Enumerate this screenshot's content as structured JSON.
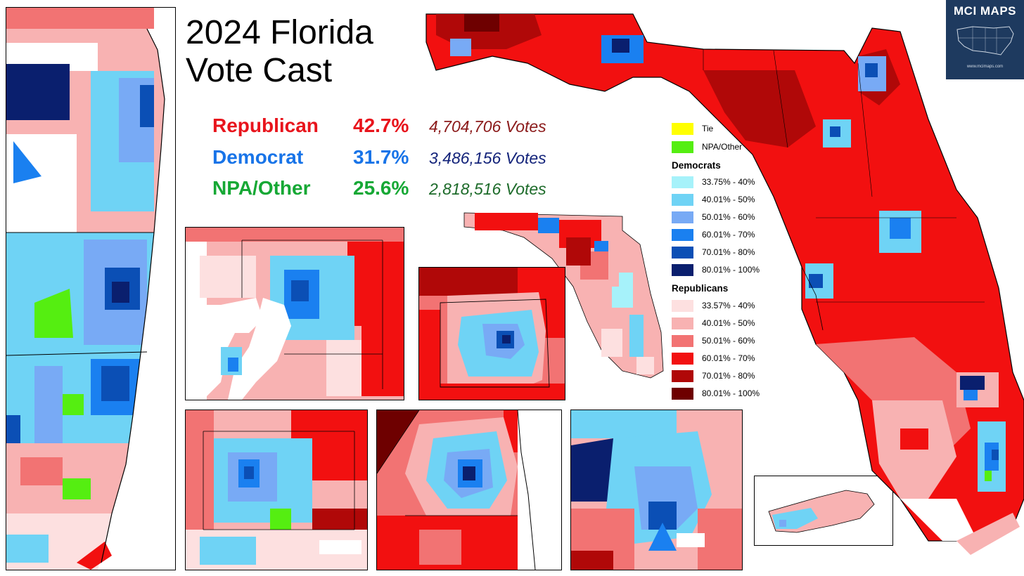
{
  "title": {
    "line1": "2024 Florida",
    "line2": "Vote Cast"
  },
  "results": [
    {
      "party": "Republican",
      "percent": "42.7%",
      "votes": "4,704,706 Votes",
      "color": "#e8141c",
      "votes_color": "#8b1a1a"
    },
    {
      "party": "Democrat",
      "percent": "31.7%",
      "votes": "3,486,156 Votes",
      "color": "#1874e8",
      "votes_color": "#13237a"
    },
    {
      "party": "NPA/Other",
      "percent": "25.6%",
      "votes": "2,818,516 Votes",
      "color": "#16a835",
      "votes_color": "#1d6b2a"
    }
  ],
  "legend": {
    "tie": {
      "label": "Tie",
      "color": "#ffff00"
    },
    "other": {
      "label": "NPA/Other",
      "color": "#55ee11"
    },
    "democrats_title": "Democrats",
    "democrats": [
      {
        "label": "33.75% - 40%",
        "color": "#a6f2fa"
      },
      {
        "label": "40.01% - 50%",
        "color": "#6fd3f5"
      },
      {
        "label": "50.01% - 60%",
        "color": "#78aaf5"
      },
      {
        "label": "60.01% - 70%",
        "color": "#1a80f0"
      },
      {
        "label": "70.01% - 80%",
        "color": "#0b4fb5"
      },
      {
        "label": "80.01% - 100%",
        "color": "#0a1f6e"
      }
    ],
    "republicans_title": "Republicans",
    "republicans": [
      {
        "label": "33.57% - 40%",
        "color": "#fde0e0"
      },
      {
        "label": "40.01% - 50%",
        "color": "#f8b2b2"
      },
      {
        "label": "50.01% - 60%",
        "color": "#f27373"
      },
      {
        "label": "60.01% - 70%",
        "color": "#f21010"
      },
      {
        "label": "70.01% - 80%",
        "color": "#b00808"
      },
      {
        "label": "80.01% - 100%",
        "color": "#6e0000"
      }
    ]
  },
  "logo": {
    "text": "MCI MAPS",
    "url": "www.mcimaps.com"
  }
}
